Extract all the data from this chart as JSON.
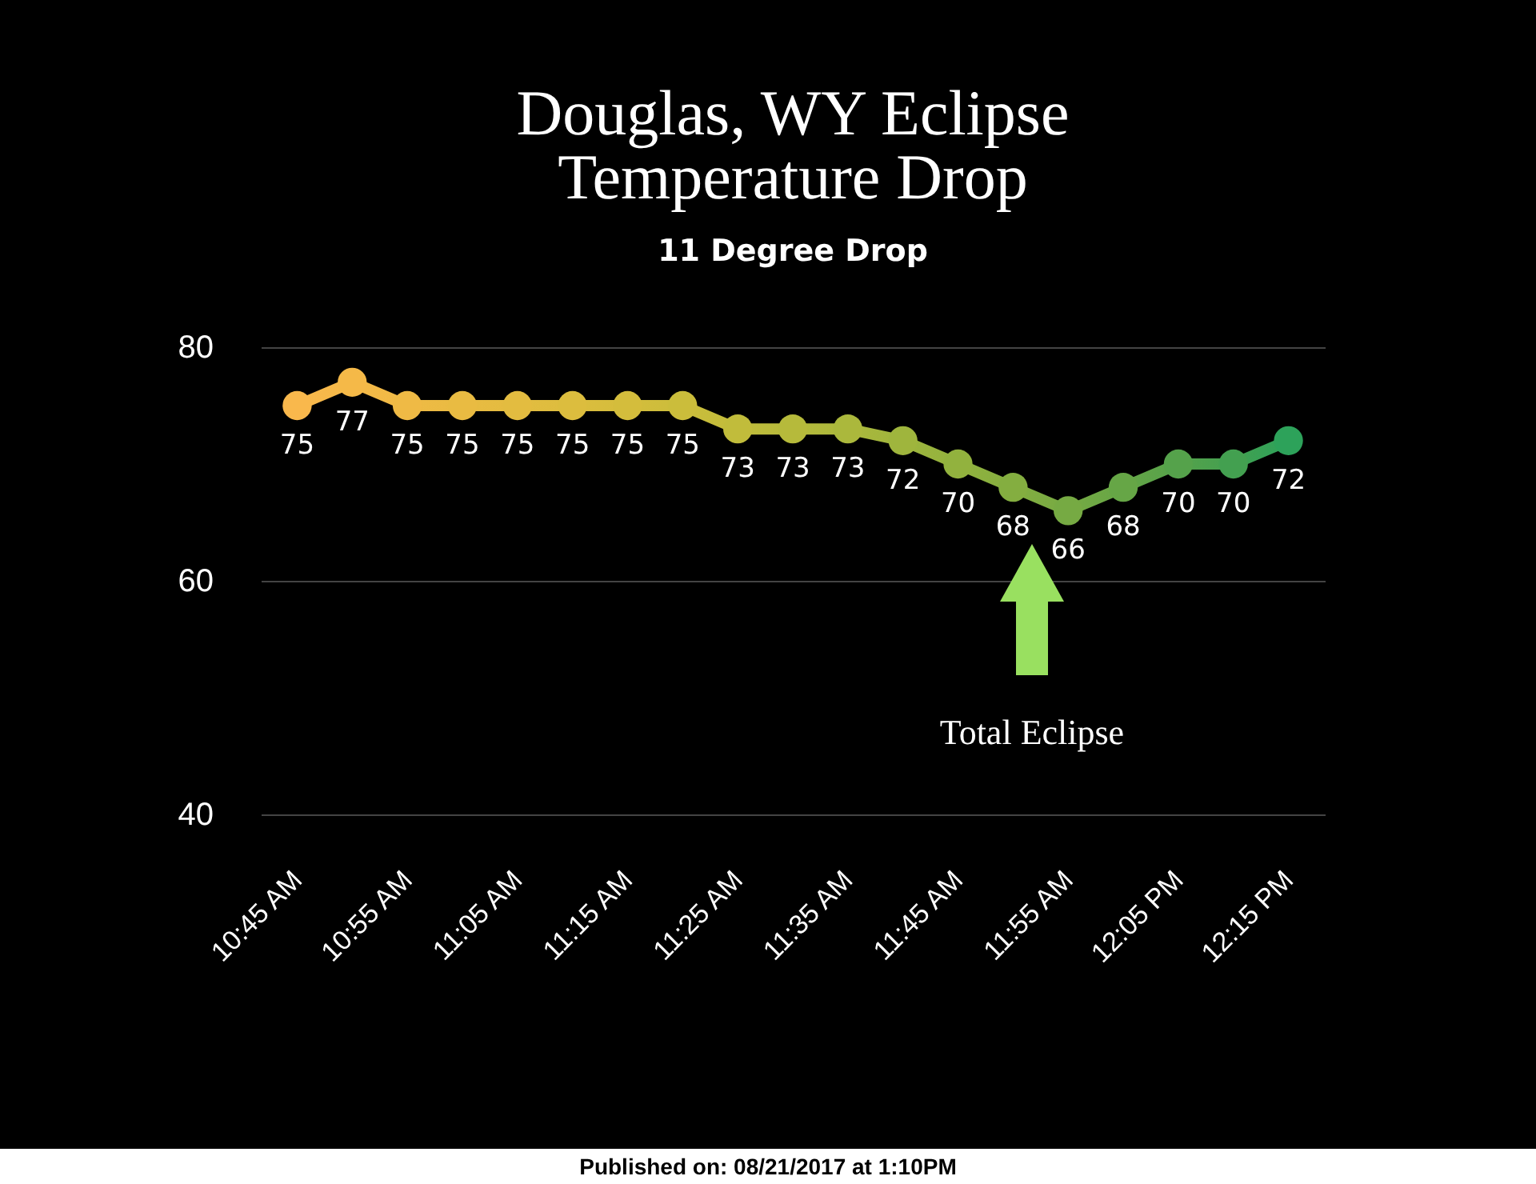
{
  "chart_data": {
    "type": "line",
    "title": "Douglas, WY Eclipse\nTemperature Drop",
    "subtitle": "11 Degree Drop",
    "categories": [
      "10:45 AM",
      null,
      "10:55 AM",
      null,
      "11:05 AM",
      null,
      "11:15 AM",
      null,
      "11:25 AM",
      null,
      "11:35 AM",
      null,
      "11:45 AM",
      null,
      "11:55 AM",
      null,
      "12:05 PM",
      null,
      "12:15 PM"
    ],
    "values": [
      75,
      77,
      75,
      75,
      75,
      75,
      75,
      75,
      73,
      73,
      73,
      72,
      70,
      68,
      66,
      68,
      70,
      70,
      72
    ],
    "colors": [
      "#f9b84c",
      "#f5b948",
      "#efba45",
      "#e9bb42",
      "#e3bc40",
      "#dcbd3e",
      "#d4bd3c",
      "#cbbd3b",
      "#c1bc3b",
      "#b6ba3b",
      "#abb83c",
      "#9fb53d",
      "#92b23e",
      "#84ae40",
      "#76aa43",
      "#66a646",
      "#55a24b",
      "#43a050",
      "#2da25a"
    ],
    "marker": "circle",
    "data_labels": true,
    "ylim": [
      40,
      80
    ],
    "yticks": [
      40,
      60,
      80
    ],
    "grid": "y",
    "annotations": [
      "Total Eclipse",
      "Published on: 08/21/2017 at 1:10PM"
    ]
  }
}
